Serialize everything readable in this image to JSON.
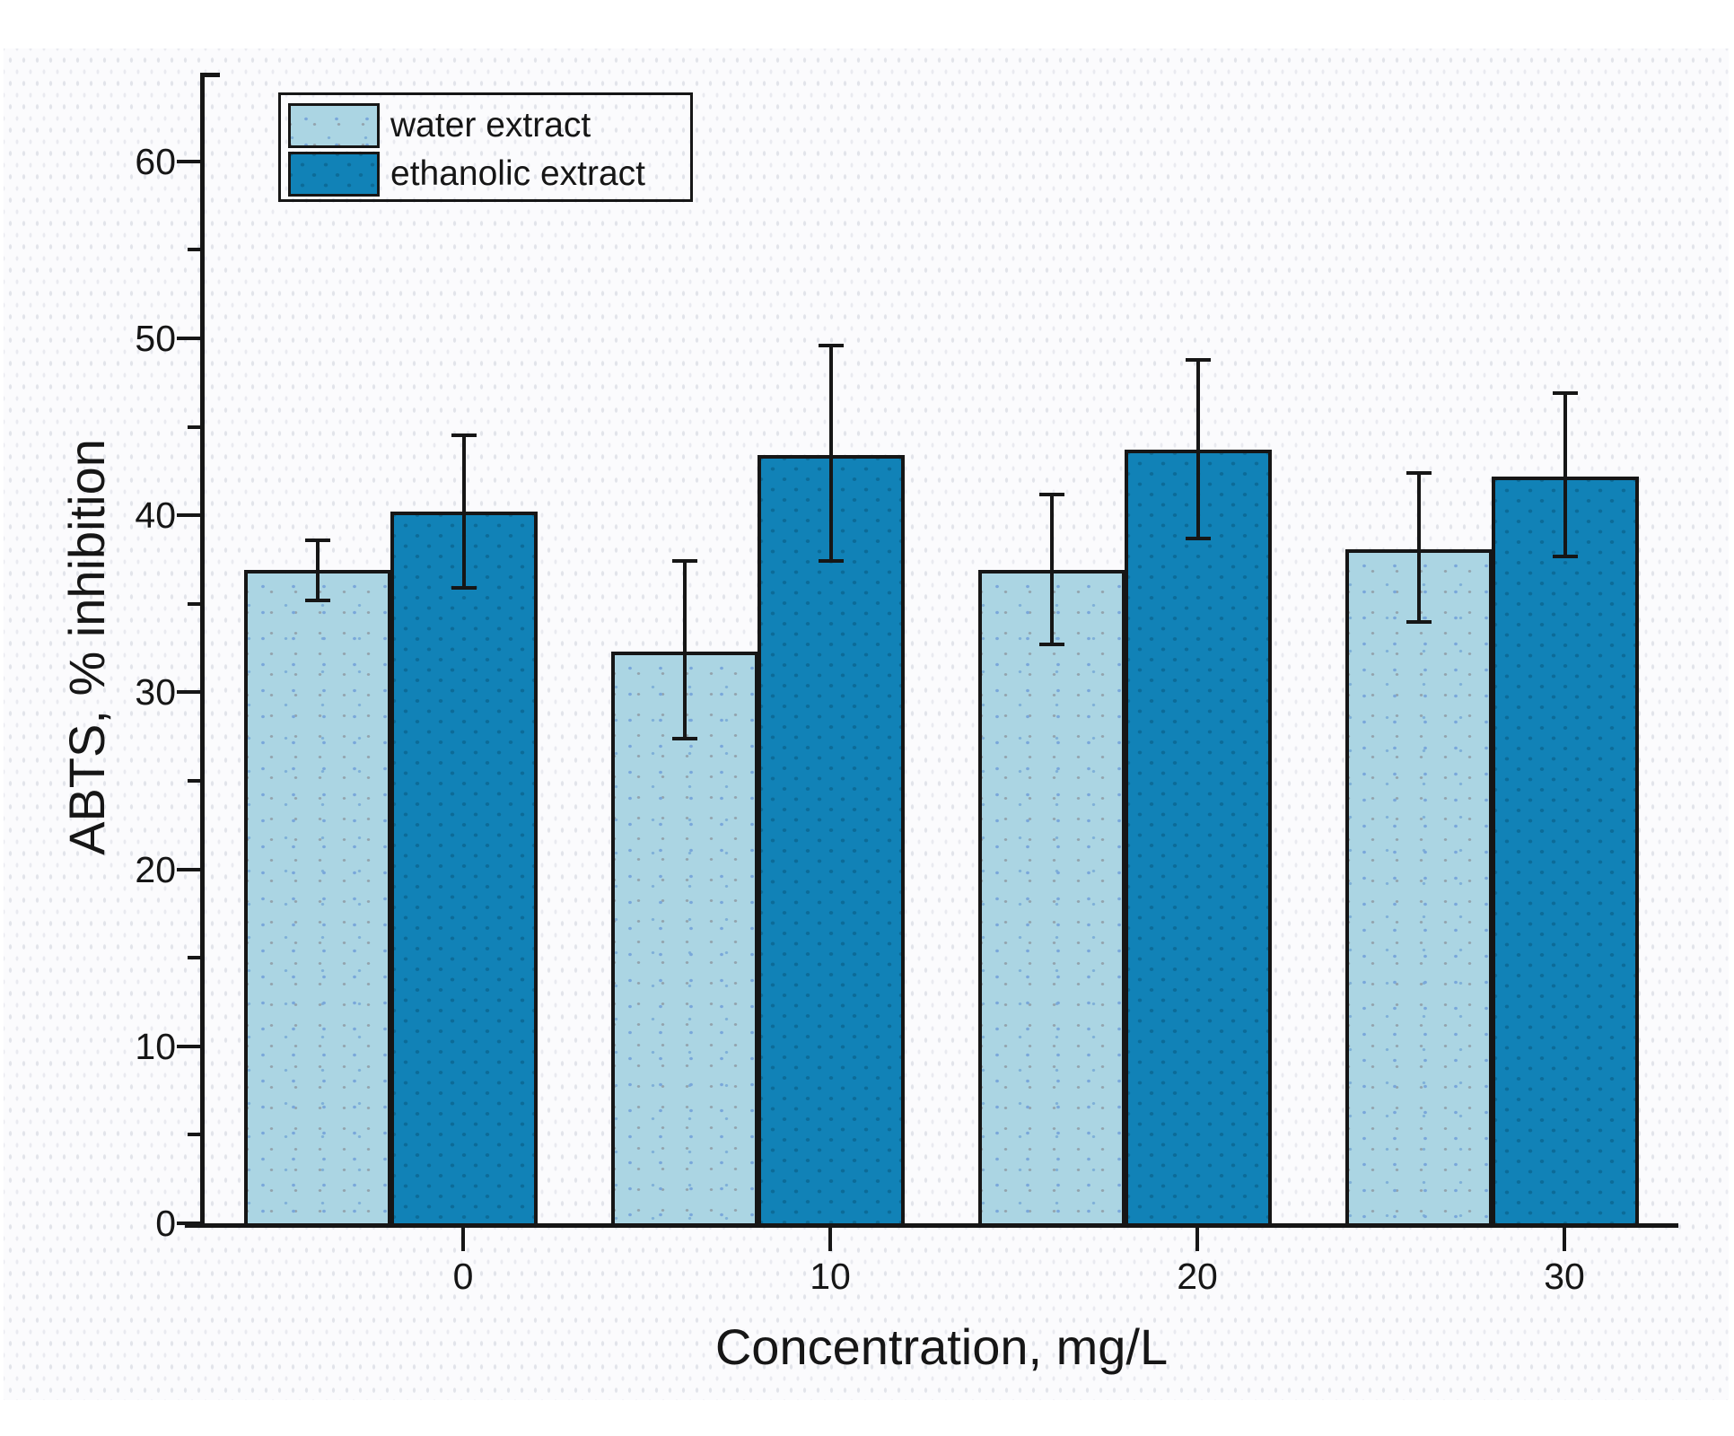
{
  "chart_data": {
    "type": "bar",
    "title": "",
    "xlabel": "Concentration, mg/L",
    "ylabel": "ABTS, % inhibition",
    "categories": [
      "0",
      "10",
      "20",
      "30"
    ],
    "series": [
      {
        "name": "water extract",
        "values": [
          36.9,
          32.3,
          36.9,
          38.1
        ],
        "err_plus": [
          1.7,
          5.1,
          4.3,
          4.3
        ],
        "err_minus": [
          1.7,
          4.9,
          4.2,
          4.1
        ],
        "fill": "#abd5e3",
        "pattern": "speckled-dots"
      },
      {
        "name": "ethanolic extract",
        "values": [
          40.2,
          43.4,
          43.7,
          42.2
        ],
        "err_plus": [
          4.3,
          6.2,
          5.1,
          4.7
        ],
        "err_minus": [
          4.3,
          6.0,
          5.0,
          4.5
        ],
        "fill": "#1182b7",
        "pattern": "dense-dots"
      }
    ],
    "ylim": [
      0,
      65
    ],
    "yticks": [
      0,
      10,
      20,
      30,
      40,
      50,
      60
    ],
    "y_minor_ticks": [
      5,
      15,
      25,
      35,
      45,
      55
    ],
    "grid": false,
    "legend_position": "top-left",
    "axis_color": "#161616",
    "error_bar_color": "#161616"
  }
}
